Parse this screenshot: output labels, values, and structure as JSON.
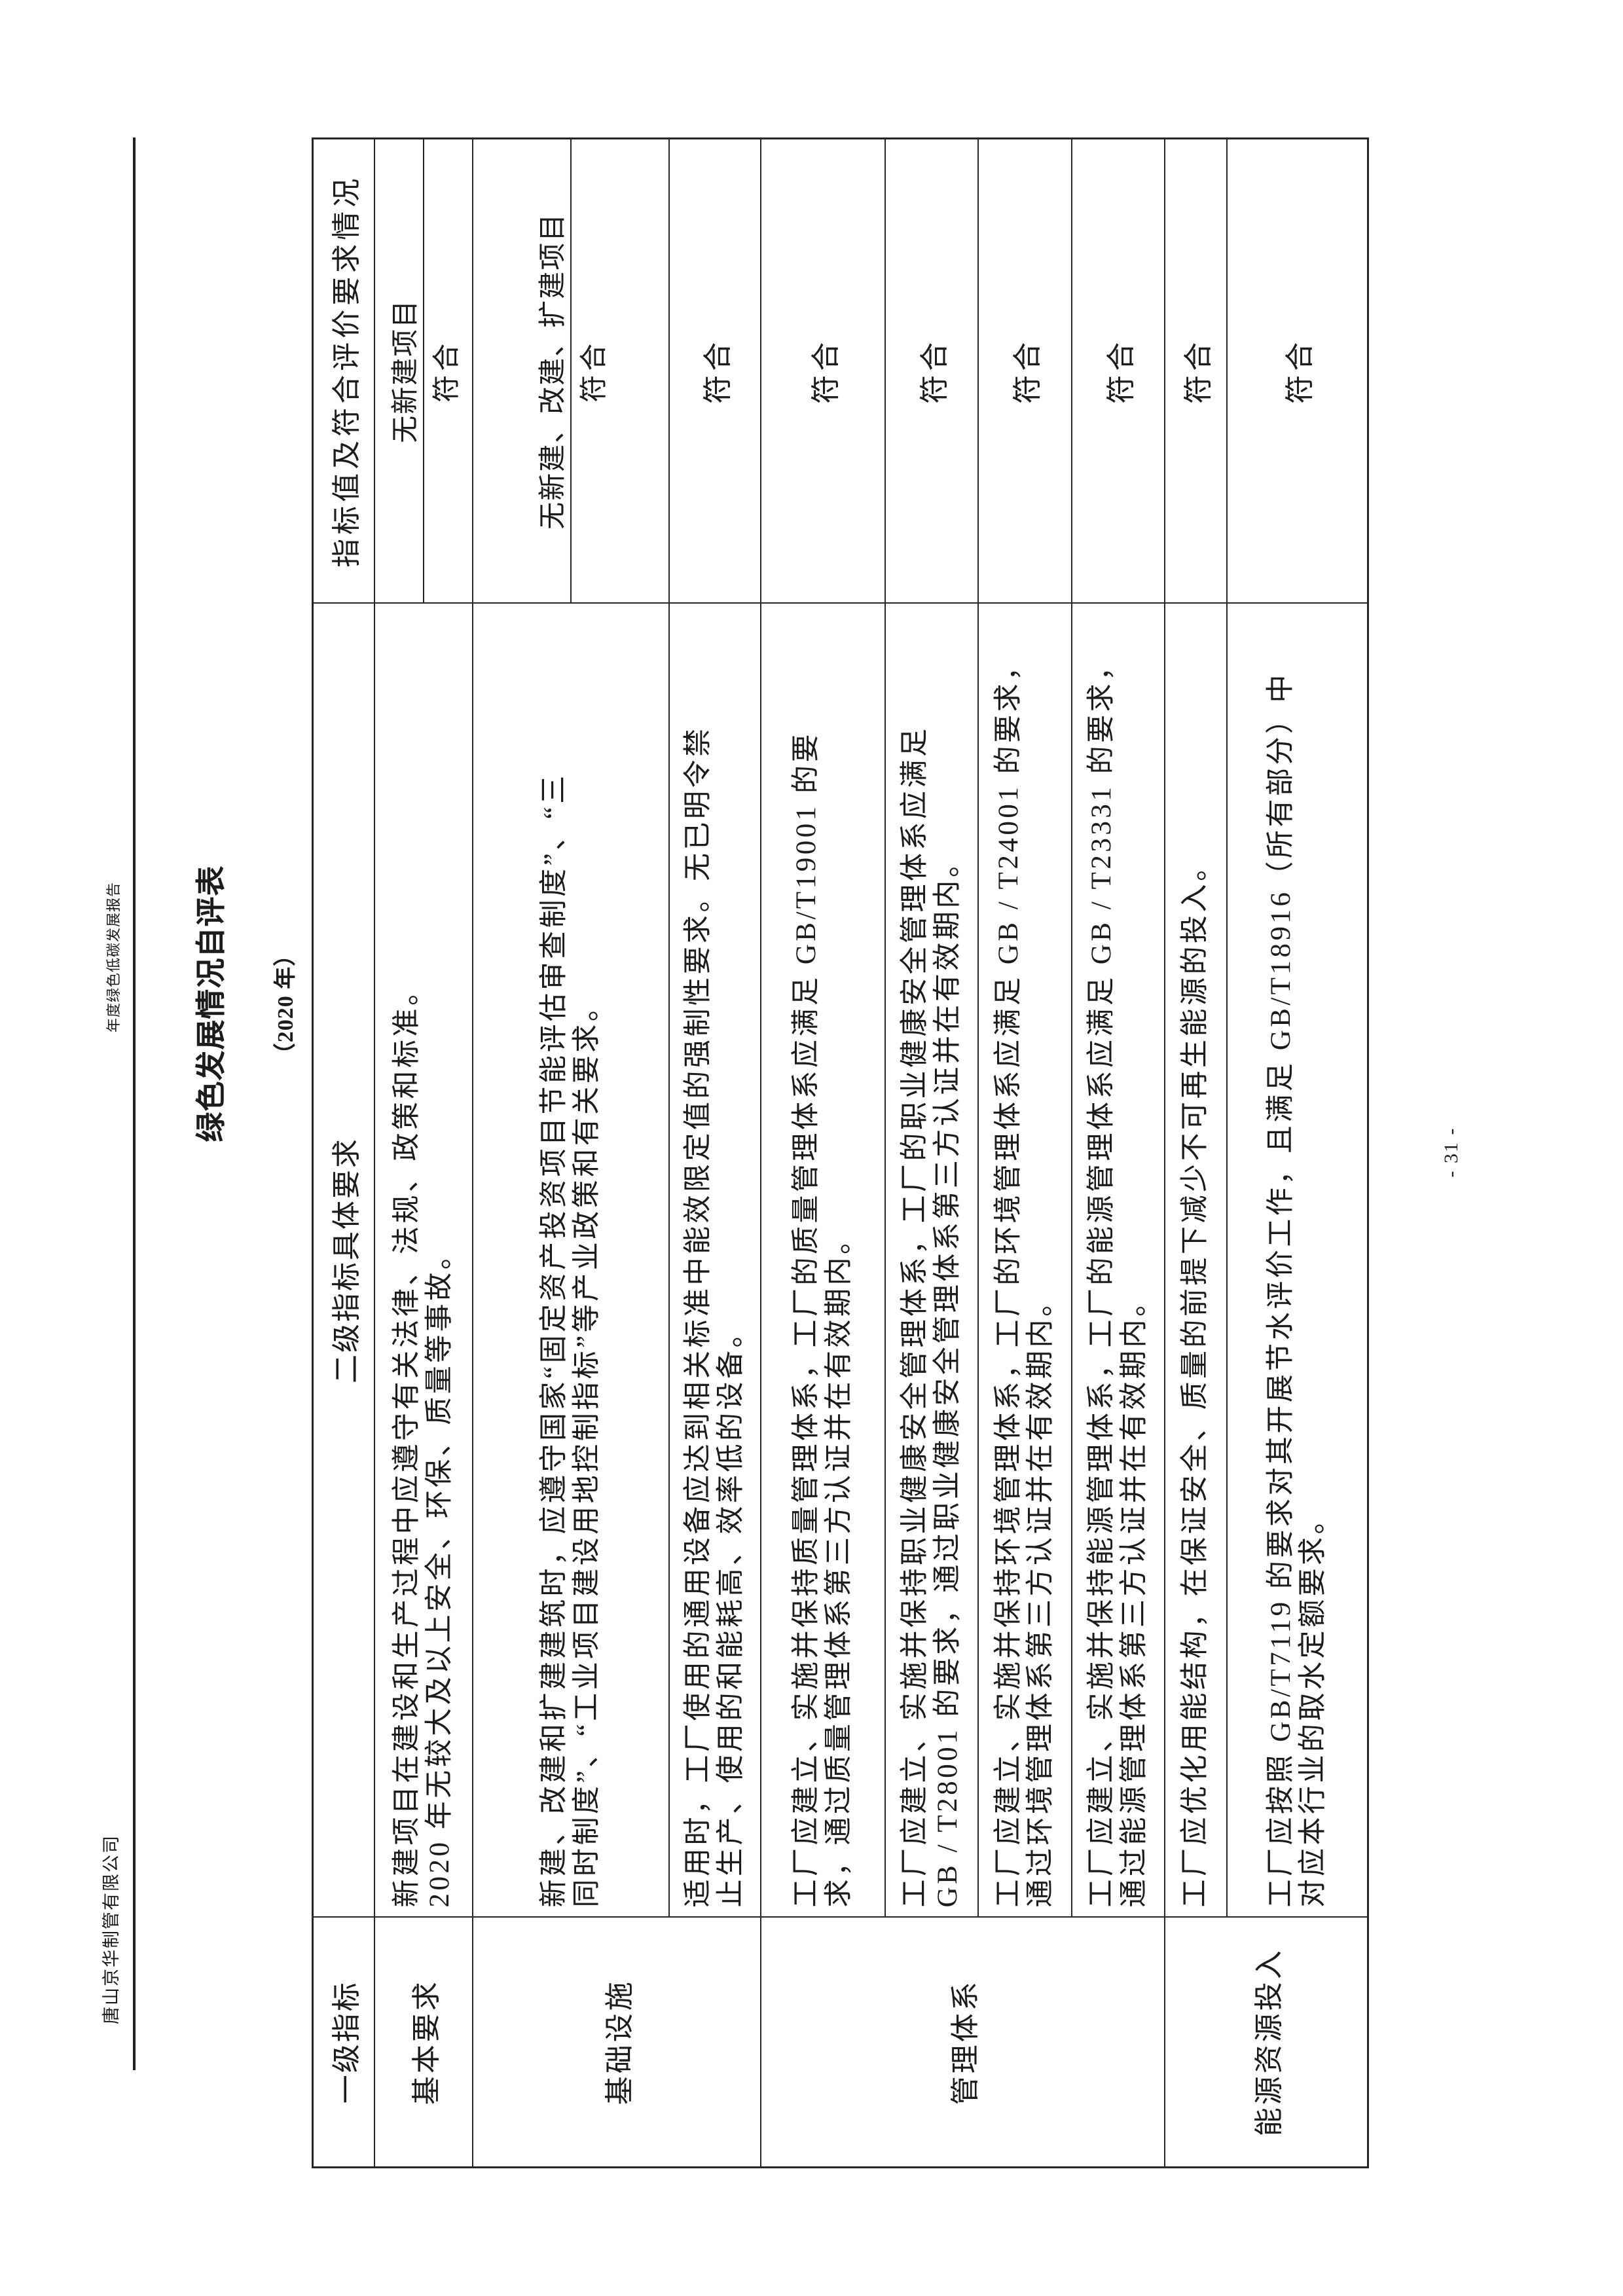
{
  "page": {
    "company_header": "唐山京华制管有限公司",
    "report_header": "年度绿色低碳发展报告",
    "page_number": "- 31 -"
  },
  "title": "绿色发展情况自评表",
  "subtitle": "（2020 年）",
  "table": {
    "headers": {
      "col1": "一级指标",
      "col2": "二级指标具体要求",
      "col3": "指标值及符合评价要求情况"
    },
    "rows": [
      {
        "group": "基本要求",
        "req_lines": [
          "新建项目在建设和生产过程中应遵守有关法律、法规、政策和标准。",
          "2020 年无较大及以上安全、环保、质量等事故。"
        ],
        "value_lines": [
          "无新建项目",
          "符合"
        ]
      },
      {
        "group": "基础设施",
        "req_lines": [
          "新建、改建和扩建建筑时，应遵守国家“固定资产投资项目节能评估审查制度”、“三",
          "同时制度”、“工业项目建设用地控制指标”等产业政策和有关要求。"
        ],
        "value_lines": [
          "无新建、改建、扩建项目",
          "符合"
        ]
      },
      {
        "req_lines": [
          "适用时，工厂使用的通用设备应达到相关标准中能效限定值的强制性要求。无已明令禁",
          "止生产、使用的和能耗高、效率低的设备。"
        ],
        "value_lines": [
          "符合"
        ]
      },
      {
        "group": "管理体系",
        "req_lines": [
          "工厂应建立、实施并保持质量管理体系，工厂的质量管理体系应满足 GB/T19001 的要",
          "求，通过质量管理体系第三方认证并在有效期内。"
        ],
        "value_lines": [
          "符合"
        ]
      },
      {
        "req_lines": [
          "工厂应建立、实施并保持职业健康安全管理体系，工厂的职业健康安全管理体系应满足",
          "GB / T28001 的要求，通过职业健康安全管理体系第三方认证并在有效期内。"
        ],
        "value_lines": [
          "符合"
        ]
      },
      {
        "req_lines": [
          "工厂应建立、实施并保持环境管理体系，工厂的环境管理体系应满足 GB / T24001 的要求，",
          "通过环境管理体系第三方认证并在有效期内。"
        ],
        "value_lines": [
          "符合"
        ]
      },
      {
        "req_lines": [
          "工厂应建立、实施并保持能源管理体系，工厂的能源管理体系应满足 GB / T23331 的要求，",
          "通过能源管理体系第三方认证并在有效期内。"
        ],
        "value_lines": [
          "符合"
        ]
      },
      {
        "group": "能源资源投入",
        "req_lines": [
          "工厂应优化用能结构，在保证安全、质量的前提下减少不可再生能源的投入。"
        ],
        "value_lines": [
          "符合"
        ]
      },
      {
        "req_lines": [
          "工厂应按照 GB/T7119 的要求对其开展节水评价工作，且满足 GB/T18916（所有部分）中",
          "对应本行业的取水定额要求。"
        ],
        "value_lines": [
          "符合"
        ]
      }
    ]
  }
}
